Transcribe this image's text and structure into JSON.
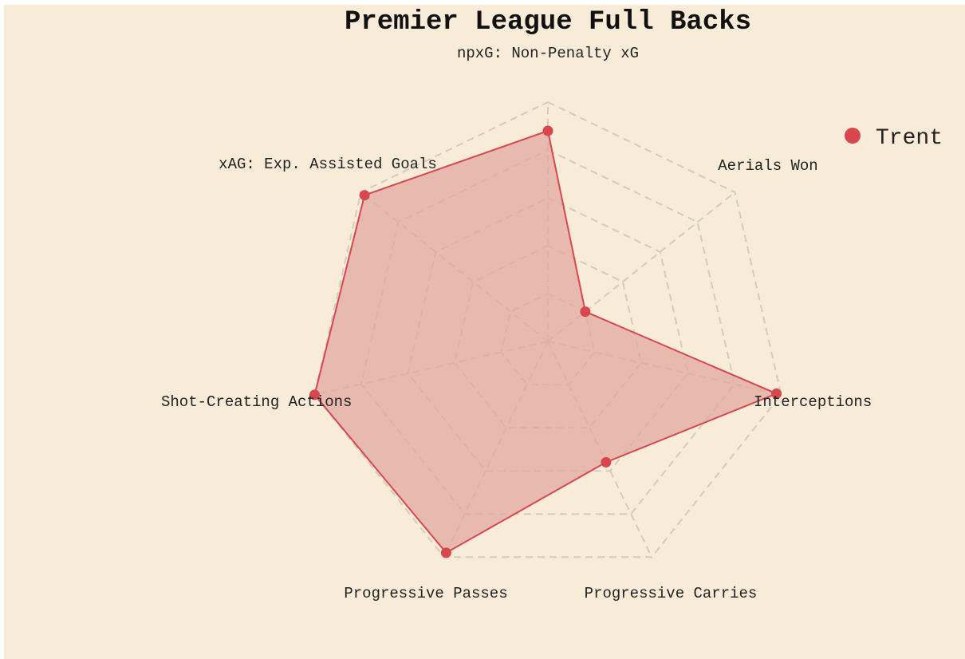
{
  "chart_data": {
    "type": "radar",
    "title": "Premier League Full Backs",
    "axes": [
      "npxG: Non-Penalty xG",
      "Aerials Won",
      "Interceptions",
      "Progressive Carries",
      "Progressive Passes",
      "Shot-Creating Actions",
      "xAG: Exp. Assisted Goals"
    ],
    "range": [
      0,
      100
    ],
    "gridlines": 5,
    "grid_style": "dashed",
    "series": [
      {
        "name": "Trent",
        "values": [
          88,
          20,
          98,
          56,
          98,
          100,
          98
        ],
        "color": "#d7474d"
      }
    ],
    "legend": {
      "position": "top-right"
    },
    "colors": {
      "background": "#f8ecd9",
      "grid": "#d3cbc0",
      "fill": "#e3a9a0"
    }
  }
}
